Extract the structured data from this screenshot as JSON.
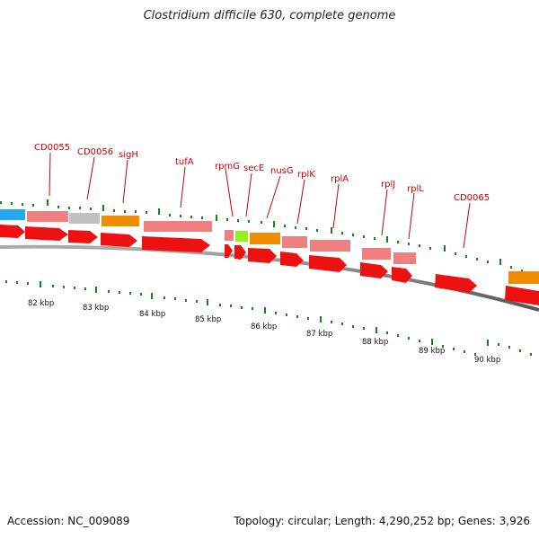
{
  "title": "Clostridium difficile 630, complete genome",
  "footer": {
    "accession": "Accession: NC_009089",
    "summary": "Topology: circular; Length: 4,290,252 bp; Genes: 3,926"
  },
  "colors": {
    "forward_orange": "#f08c00",
    "forward_pink": "#f08080",
    "forward_gray": "#c0c0c0",
    "forward_cyan": "#22aaee",
    "forward_green": "#99ee22",
    "reverse_red": "#ee1111",
    "tick": "#118811",
    "backbone": "#777777",
    "label": "#cc0000"
  },
  "gene_labels": [
    "CD0055",
    "CD0056",
    "sigH",
    "tufA",
    "rpmG",
    "secE",
    "nusG",
    "rplK",
    "rplA",
    "rplJ",
    "rplL",
    "CD0065"
  ],
  "scale_labels": [
    "82 kbp",
    "83 kbp",
    "84 kbp",
    "85 kbp",
    "86 kbp",
    "87 kbp",
    "88 kbp",
    "89 kbp",
    "90 kbp"
  ]
}
